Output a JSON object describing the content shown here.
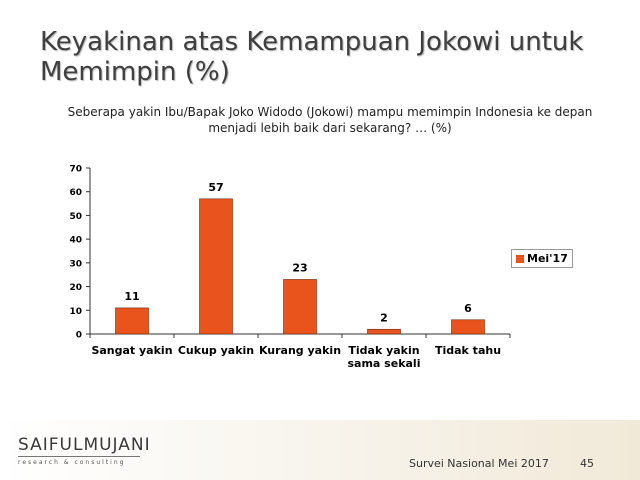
{
  "slide": {
    "title": "Keyakinan atas Kemampuan Jokowi untuk Memimpin (%)",
    "question": "Seberapa yakin Ibu/Bapak Joko Widodo (Jokowi) mampu memimpin Indonesia ke depan menjadi lebih baik dari sekarang? … (%)"
  },
  "chart_data": {
    "type": "bar",
    "categories": [
      "Sangat yakin",
      "Cukup yakin",
      "Kurang yakin",
      "Tidak yakin sama sekali",
      "Tidak tahu"
    ],
    "series": [
      {
        "name": "Mei'17",
        "values": [
          11,
          57,
          23,
          2,
          6
        ],
        "color": "#e8541c"
      }
    ],
    "ylim": [
      0,
      70
    ],
    "yticks": [
      0,
      10,
      20,
      30,
      40,
      50,
      60,
      70
    ],
    "grid": false,
    "legend_position": "right",
    "data_labels": true
  },
  "footer": {
    "logo_main": "SAIFULMUJANI",
    "logo_sub": "research & consulting",
    "survey": "Survei Nasional Mei 2017",
    "page": "45"
  }
}
